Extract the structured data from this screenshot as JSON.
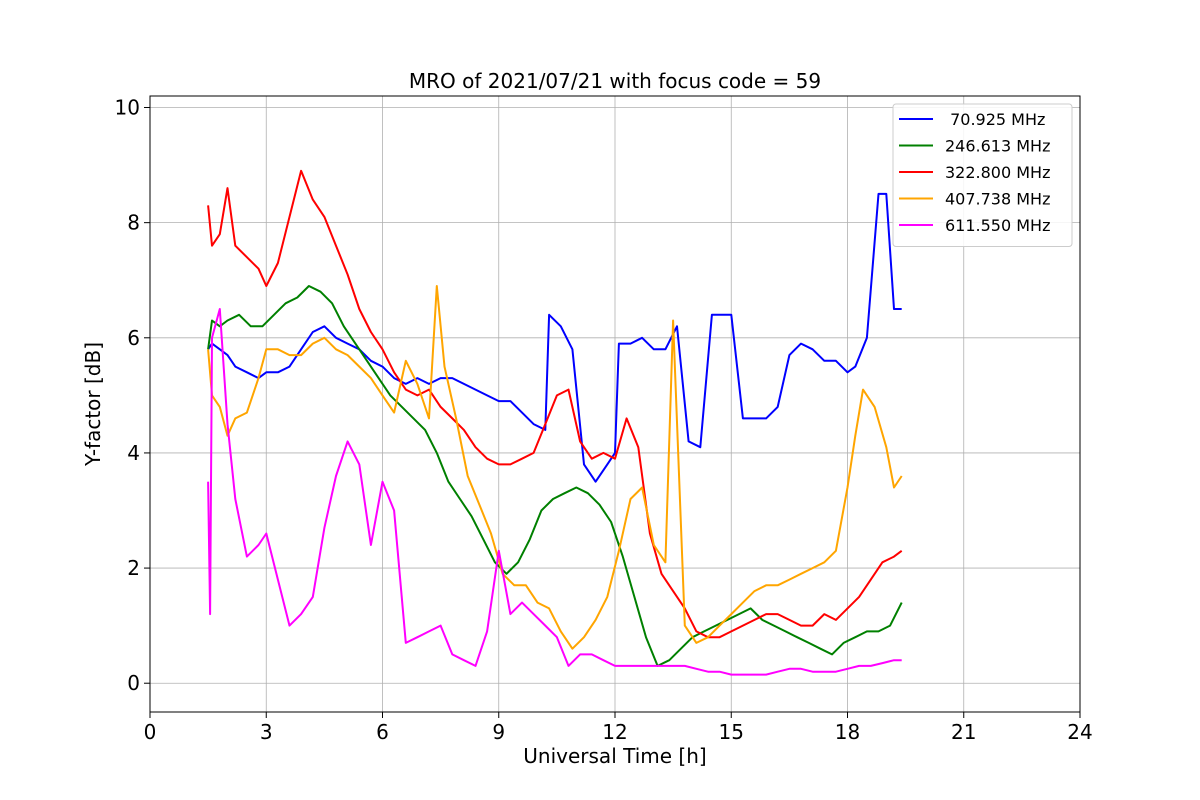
{
  "chart_data": {
    "type": "line",
    "title": "MRO of 2021/07/21 with focus code = 59",
    "xlabel": "Universal Time [h]",
    "ylabel": "Y-factor [dB]",
    "xlim": [
      0,
      24
    ],
    "ylim": [
      -0.5,
      10.2
    ],
    "xticks": [
      0,
      3,
      6,
      9,
      12,
      15,
      18,
      21,
      24
    ],
    "yticks": [
      0,
      2,
      4,
      6,
      8,
      10
    ],
    "grid": true,
    "legend_position": "top-right",
    "series": [
      {
        "name": " 70.925 MHz",
        "color": "#0000ff",
        "x": [
          1.5,
          1.6,
          1.8,
          2.0,
          2.2,
          2.5,
          2.8,
          3.0,
          3.3,
          3.6,
          3.9,
          4.2,
          4.5,
          4.8,
          5.1,
          5.4,
          5.7,
          6.0,
          6.3,
          6.6,
          6.9,
          7.2,
          7.5,
          7.8,
          8.1,
          8.4,
          8.7,
          9.0,
          9.3,
          9.6,
          9.9,
          10.2,
          10.3,
          10.6,
          10.9,
          11.2,
          11.5,
          11.8,
          12.0,
          12.1,
          12.4,
          12.7,
          13.0,
          13.3,
          13.6,
          13.9,
          14.2,
          14.5,
          14.8,
          15.0,
          15.3,
          15.6,
          15.9,
          16.2,
          16.5,
          16.8,
          17.1,
          17.4,
          17.7,
          18.0,
          18.2,
          18.5,
          18.8,
          19.0,
          19.2,
          19.4
        ],
        "y": [
          5.8,
          5.9,
          5.8,
          5.7,
          5.5,
          5.4,
          5.3,
          5.4,
          5.4,
          5.5,
          5.8,
          6.1,
          6.2,
          6.0,
          5.9,
          5.8,
          5.6,
          5.5,
          5.3,
          5.2,
          5.3,
          5.2,
          5.3,
          5.3,
          5.2,
          5.1,
          5.0,
          4.9,
          4.9,
          4.7,
          4.5,
          4.4,
          6.4,
          6.2,
          5.8,
          3.8,
          3.5,
          3.8,
          4.0,
          5.9,
          5.9,
          6.0,
          5.8,
          5.8,
          6.2,
          4.2,
          4.1,
          6.4,
          6.4,
          6.4,
          4.6,
          4.6,
          4.6,
          4.8,
          5.7,
          5.9,
          5.8,
          5.6,
          5.6,
          5.4,
          5.5,
          6.0,
          8.5,
          8.5,
          6.5,
          6.5
        ]
      },
      {
        "name": "246.613 MHz",
        "color": "#008000",
        "x": [
          1.5,
          1.6,
          1.8,
          2.0,
          2.3,
          2.6,
          2.9,
          3.2,
          3.5,
          3.8,
          4.1,
          4.4,
          4.7,
          5.0,
          5.3,
          5.6,
          5.9,
          6.2,
          6.5,
          6.8,
          7.1,
          7.4,
          7.7,
          8.0,
          8.3,
          8.6,
          8.9,
          9.2,
          9.5,
          9.8,
          10.1,
          10.4,
          10.7,
          11.0,
          11.3,
          11.6,
          11.9,
          12.2,
          12.5,
          12.8,
          13.1,
          13.4,
          13.7,
          14.0,
          14.3,
          14.6,
          14.9,
          15.2,
          15.5,
          15.8,
          16.1,
          16.4,
          16.7,
          17.0,
          17.3,
          17.6,
          17.9,
          18.2,
          18.5,
          18.8,
          19.1,
          19.4
        ],
        "y": [
          5.8,
          6.3,
          6.2,
          6.3,
          6.4,
          6.2,
          6.2,
          6.4,
          6.6,
          6.7,
          6.9,
          6.8,
          6.6,
          6.2,
          5.9,
          5.6,
          5.3,
          5.0,
          4.8,
          4.6,
          4.4,
          4.0,
          3.5,
          3.2,
          2.9,
          2.5,
          2.1,
          1.9,
          2.1,
          2.5,
          3.0,
          3.2,
          3.3,
          3.4,
          3.3,
          3.1,
          2.8,
          2.2,
          1.5,
          0.8,
          0.3,
          0.4,
          0.6,
          0.8,
          0.9,
          1.0,
          1.1,
          1.2,
          1.3,
          1.1,
          1.0,
          0.9,
          0.8,
          0.7,
          0.6,
          0.5,
          0.7,
          0.8,
          0.9,
          0.9,
          1.0,
          1.4
        ]
      },
      {
        "name": "322.800 MHz",
        "color": "#ff0000",
        "x": [
          1.5,
          1.6,
          1.8,
          2.0,
          2.2,
          2.5,
          2.8,
          3.0,
          3.3,
          3.6,
          3.9,
          4.2,
          4.5,
          4.8,
          5.1,
          5.4,
          5.7,
          6.0,
          6.3,
          6.6,
          6.9,
          7.2,
          7.5,
          7.8,
          8.1,
          8.4,
          8.7,
          9.0,
          9.3,
          9.6,
          9.9,
          10.2,
          10.5,
          10.8,
          11.1,
          11.4,
          11.7,
          12.0,
          12.3,
          12.6,
          12.9,
          13.2,
          13.5,
          13.8,
          14.1,
          14.4,
          14.7,
          15.0,
          15.3,
          15.6,
          15.9,
          16.2,
          16.5,
          16.8,
          17.1,
          17.4,
          17.7,
          18.0,
          18.3,
          18.6,
          18.9,
          19.2,
          19.4
        ],
        "y": [
          8.3,
          7.6,
          7.8,
          8.6,
          7.6,
          7.4,
          7.2,
          6.9,
          7.3,
          8.1,
          8.9,
          8.4,
          8.1,
          7.6,
          7.1,
          6.5,
          6.1,
          5.8,
          5.4,
          5.1,
          5.0,
          5.1,
          4.8,
          4.6,
          4.4,
          4.1,
          3.9,
          3.8,
          3.8,
          3.9,
          4.0,
          4.5,
          5.0,
          5.1,
          4.2,
          3.9,
          4.0,
          3.9,
          4.6,
          4.1,
          2.6,
          1.9,
          1.6,
          1.3,
          0.9,
          0.8,
          0.8,
          0.9,
          1.0,
          1.1,
          1.2,
          1.2,
          1.1,
          1.0,
          1.0,
          1.2,
          1.1,
          1.3,
          1.5,
          1.8,
          2.1,
          2.2,
          2.3
        ]
      },
      {
        "name": "407.738 MHz",
        "color": "#ffa500",
        "x": [
          1.5,
          1.6,
          1.8,
          2.0,
          2.2,
          2.5,
          2.8,
          3.0,
          3.3,
          3.6,
          3.9,
          4.2,
          4.5,
          4.8,
          5.1,
          5.4,
          5.7,
          6.0,
          6.3,
          6.6,
          6.9,
          7.2,
          7.4,
          7.6,
          7.9,
          8.2,
          8.5,
          8.8,
          9.1,
          9.4,
          9.7,
          10.0,
          10.3,
          10.6,
          10.9,
          11.2,
          11.5,
          11.8,
          12.1,
          12.4,
          12.7,
          13.0,
          13.3,
          13.5,
          13.8,
          14.1,
          14.4,
          14.7,
          15.0,
          15.3,
          15.6,
          15.9,
          16.2,
          16.5,
          16.8,
          17.1,
          17.4,
          17.7,
          18.0,
          18.2,
          18.4,
          18.7,
          19.0,
          19.2,
          19.4
        ],
        "y": [
          5.8,
          5.0,
          4.8,
          4.3,
          4.6,
          4.7,
          5.3,
          5.8,
          5.8,
          5.7,
          5.7,
          5.9,
          6.0,
          5.8,
          5.7,
          5.5,
          5.3,
          5.0,
          4.7,
          5.6,
          5.2,
          4.6,
          6.9,
          5.5,
          4.6,
          3.6,
          3.1,
          2.6,
          1.9,
          1.7,
          1.7,
          1.4,
          1.3,
          0.9,
          0.6,
          0.8,
          1.1,
          1.5,
          2.3,
          3.2,
          3.4,
          2.4,
          2.1,
          6.3,
          1.0,
          0.7,
          0.8,
          1.0,
          1.2,
          1.4,
          1.6,
          1.7,
          1.7,
          1.8,
          1.9,
          2.0,
          2.1,
          2.3,
          3.4,
          4.3,
          5.1,
          4.8,
          4.1,
          3.4,
          3.6
        ]
      },
      {
        "name": "611.550 MHz",
        "color": "#ff00ff",
        "x": [
          1.5,
          1.55,
          1.6,
          1.8,
          2.0,
          2.2,
          2.5,
          2.8,
          3.0,
          3.3,
          3.6,
          3.9,
          4.2,
          4.5,
          4.8,
          5.1,
          5.4,
          5.7,
          6.0,
          6.3,
          6.6,
          6.9,
          7.2,
          7.5,
          7.8,
          8.1,
          8.4,
          8.7,
          9.0,
          9.3,
          9.6,
          9.9,
          10.2,
          10.5,
          10.8,
          11.1,
          11.4,
          11.7,
          12.0,
          12.3,
          12.6,
          12.9,
          13.2,
          13.5,
          13.8,
          14.1,
          14.4,
          14.7,
          15.0,
          15.3,
          15.6,
          15.9,
          16.2,
          16.5,
          16.8,
          17.1,
          17.4,
          17.7,
          18.0,
          18.3,
          18.6,
          18.9,
          19.2,
          19.4
        ],
        "y": [
          3.5,
          1.2,
          6.0,
          6.5,
          4.5,
          3.2,
          2.2,
          2.4,
          2.6,
          1.8,
          1.0,
          1.2,
          1.5,
          2.7,
          3.6,
          4.2,
          3.8,
          2.4,
          3.5,
          3.0,
          0.7,
          0.8,
          0.9,
          1.0,
          0.5,
          0.4,
          0.3,
          0.9,
          2.3,
          1.2,
          1.4,
          1.2,
          1.0,
          0.8,
          0.3,
          0.5,
          0.5,
          0.4,
          0.3,
          0.3,
          0.3,
          0.3,
          0.3,
          0.3,
          0.3,
          0.25,
          0.2,
          0.2,
          0.15,
          0.15,
          0.15,
          0.15,
          0.2,
          0.25,
          0.25,
          0.2,
          0.2,
          0.2,
          0.25,
          0.3,
          0.3,
          0.35,
          0.4,
          0.4
        ]
      }
    ]
  }
}
